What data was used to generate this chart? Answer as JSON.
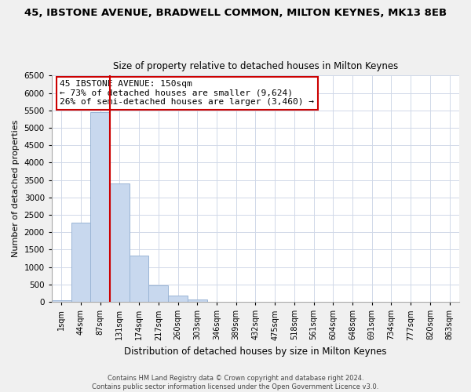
{
  "title": "45, IBSTONE AVENUE, BRADWELL COMMON, MILTON KEYNES, MK13 8EB",
  "subtitle": "Size of property relative to detached houses in Milton Keynes",
  "xlabel": "Distribution of detached houses by size in Milton Keynes",
  "ylabel": "Number of detached properties",
  "bar_labels": [
    "1sqm",
    "44sqm",
    "87sqm",
    "131sqm",
    "174sqm",
    "217sqm",
    "260sqm",
    "303sqm",
    "346sqm",
    "389sqm",
    "432sqm",
    "475sqm",
    "518sqm",
    "561sqm",
    "604sqm",
    "648sqm",
    "691sqm",
    "734sqm",
    "777sqm",
    "820sqm",
    "863sqm"
  ],
  "bar_values": [
    50,
    2280,
    5440,
    3400,
    1320,
    480,
    185,
    65,
    0,
    0,
    0,
    0,
    0,
    0,
    0,
    0,
    0,
    0,
    0,
    0,
    0
  ],
  "bar_color": "#c8d8ee",
  "bar_edge_color": "#9ab5d5",
  "vline_color": "#cc0000",
  "annotation_line1": "45 IBSTONE AVENUE: 150sqm",
  "annotation_line2": "← 73% of detached houses are smaller (9,624)",
  "annotation_line3": "26% of semi-detached houses are larger (3,460) →",
  "annotation_box_color": "white",
  "annotation_box_edge": "#cc0000",
  "ylim": [
    0,
    6500
  ],
  "yticks": [
    0,
    500,
    1000,
    1500,
    2000,
    2500,
    3000,
    3500,
    4000,
    4500,
    5000,
    5500,
    6000,
    6500
  ],
  "footer_line1": "Contains HM Land Registry data © Crown copyright and database right 2024.",
  "footer_line2": "Contains public sector information licensed under the Open Government Licence v3.0.",
  "bg_color": "#f0f0f0",
  "plot_bg_color": "#ffffff",
  "grid_color": "#d0d8e8"
}
